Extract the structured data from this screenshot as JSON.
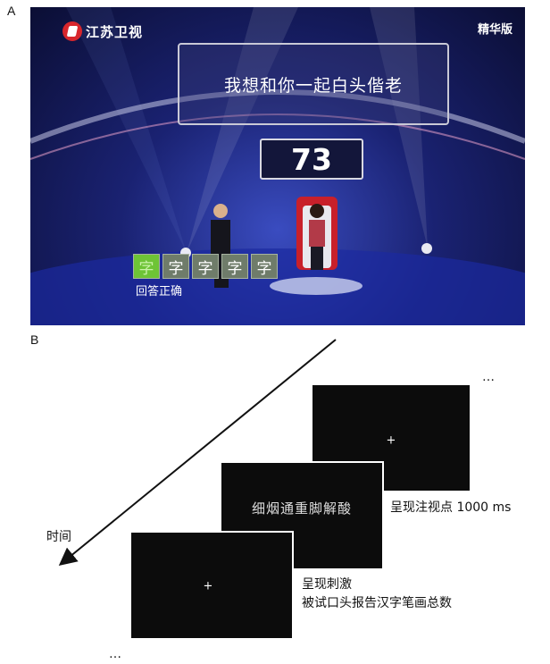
{
  "panel_a": {
    "label": "A",
    "channel_logo_text": "江苏卫视",
    "edition_text": "精华版",
    "prompt_text": "我想和你一起白头偕老",
    "score": "73",
    "char_slots": [
      "字",
      "字",
      "字",
      "字",
      "字"
    ],
    "answer_status": "回答正确",
    "colors": {
      "highlight_slot": "#6ec436",
      "logo_red": "#d8262c"
    }
  },
  "panel_b": {
    "label": "B",
    "fixation_symbol": "+",
    "stimulus_text": "细烟通重脚解酸",
    "caption_fixation": "呈现注视点 1000 ms",
    "caption_stimulus_line1": "呈现刺激",
    "caption_stimulus_line2": "被试口头报告汉字笔画总数",
    "time_label": "时间",
    "ellipsis_top": "…",
    "ellipsis_bottom": "…"
  }
}
